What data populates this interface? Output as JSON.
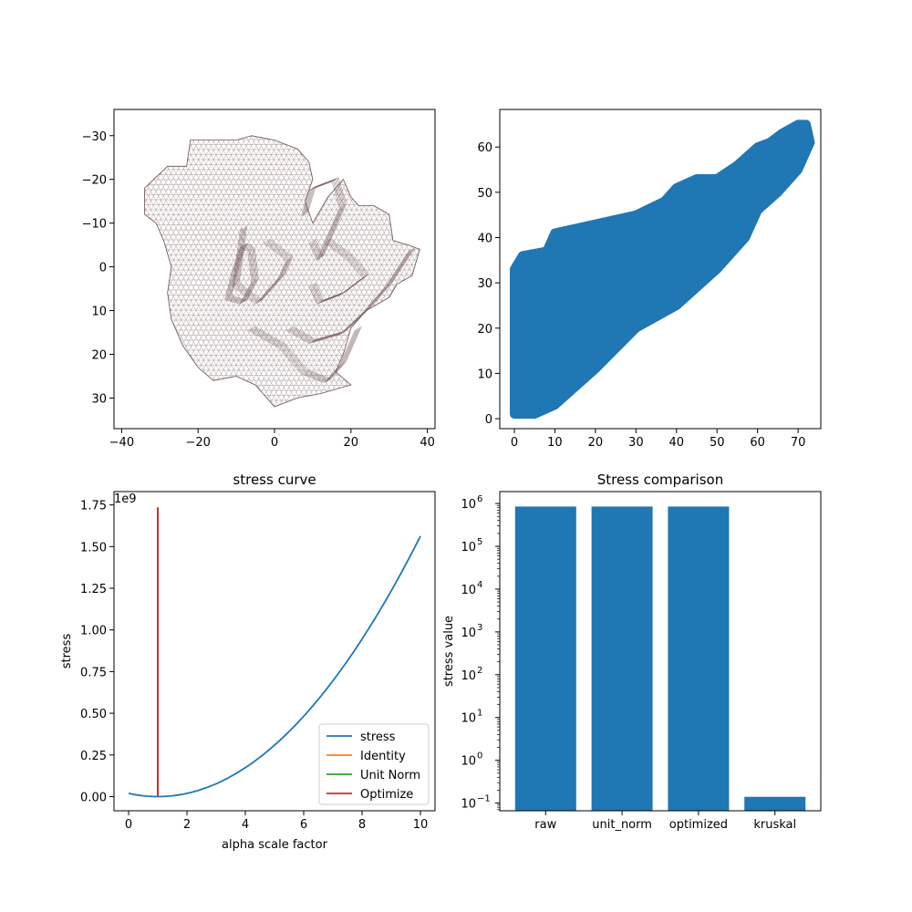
{
  "chart_data": [
    {
      "type": "mesh",
      "title": "",
      "xlabel": "",
      "ylabel": "",
      "xlim": [
        -42,
        42
      ],
      "ylim": [
        37,
        -36
      ],
      "y_inverted": true,
      "xticks": [
        -40,
        -20,
        0,
        20,
        40
      ],
      "yticks": [
        -30,
        -20,
        -10,
        0,
        10,
        20,
        30
      ],
      "xtick_labels": [
        "−40",
        "−20",
        "0",
        "20",
        "40"
      ],
      "ytick_labels": [
        "−30",
        "−20",
        "−10",
        "0",
        "10",
        "20",
        "30"
      ],
      "edge_color": "#6b4f4f",
      "outline": [
        [
          -34,
          -18
        ],
        [
          -28,
          -23
        ],
        [
          -23,
          -23
        ],
        [
          -22,
          -29
        ],
        [
          -16,
          -29
        ],
        [
          -10,
          -29
        ],
        [
          -6,
          -30
        ],
        [
          0,
          -29
        ],
        [
          6,
          -27
        ],
        [
          9,
          -24
        ],
        [
          10,
          -20
        ],
        [
          8,
          -15
        ],
        [
          10,
          -10
        ],
        [
          14,
          -16
        ],
        [
          18,
          -20
        ],
        [
          20,
          -16
        ],
        [
          22,
          -14
        ],
        [
          26,
          -14
        ],
        [
          30,
          -12
        ],
        [
          31,
          -6
        ],
        [
          35,
          -5
        ],
        [
          38,
          -4
        ],
        [
          36,
          2
        ],
        [
          32,
          4
        ],
        [
          30,
          7
        ],
        [
          24,
          10
        ],
        [
          20,
          14
        ],
        [
          18,
          20
        ],
        [
          16,
          24
        ],
        [
          20,
          27
        ],
        [
          12,
          29
        ],
        [
          6,
          30
        ],
        [
          0,
          32
        ],
        [
          -5,
          27
        ],
        [
          -10,
          25
        ],
        [
          -16,
          26
        ],
        [
          -20,
          23
        ],
        [
          -24,
          18
        ],
        [
          -27,
          12
        ],
        [
          -28,
          6
        ],
        [
          -27,
          0
        ],
        [
          -29,
          -6
        ],
        [
          -31,
          -10
        ],
        [
          -34,
          -12
        ]
      ],
      "folds": [
        [
          [
            -10,
            0
          ],
          [
            -8,
            -5
          ],
          [
            -6,
            -4
          ],
          [
            -5,
            3
          ],
          [
            -8,
            8
          ],
          [
            -12,
            7
          ],
          [
            -10,
            0
          ]
        ],
        [
          [
            -8,
            -9
          ],
          [
            -10,
            4
          ],
          [
            -4,
            8
          ],
          [
            2,
            2
          ],
          [
            4,
            -2
          ],
          [
            -2,
            -6
          ]
        ],
        [
          [
            8,
            -12
          ],
          [
            10,
            -18
          ],
          [
            16,
            -20
          ],
          [
            18,
            -14
          ],
          [
            14,
            -6
          ],
          [
            12,
            -2
          ],
          [
            10,
            -6
          ]
        ],
        [
          [
            4,
            14
          ],
          [
            10,
            17
          ],
          [
            18,
            15
          ],
          [
            24,
            10
          ],
          [
            30,
            4
          ],
          [
            36,
            -4
          ]
        ],
        [
          [
            -6,
            14
          ],
          [
            2,
            18
          ],
          [
            8,
            24
          ],
          [
            14,
            26
          ],
          [
            18,
            22
          ],
          [
            22,
            14
          ]
        ],
        [
          [
            14,
            -6
          ],
          [
            20,
            -2
          ],
          [
            24,
            2
          ],
          [
            18,
            6
          ],
          [
            12,
            8
          ],
          [
            10,
            4
          ]
        ]
      ]
    },
    {
      "type": "scatter",
      "title": "",
      "xlabel": "",
      "ylabel": "",
      "xlim": [
        -3.6,
        75.6
      ],
      "ylim": [
        -2.2,
        68.3
      ],
      "xticks": [
        0,
        10,
        20,
        30,
        40,
        50,
        60,
        70
      ],
      "yticks": [
        0,
        10,
        20,
        30,
        40,
        50,
        60
      ],
      "color": "#1f77b4",
      "upper_envelope": [
        [
          0,
          33
        ],
        [
          2,
          36
        ],
        [
          8,
          37
        ],
        [
          10,
          41
        ],
        [
          20,
          43
        ],
        [
          30,
          45
        ],
        [
          37,
          48
        ],
        [
          40,
          51
        ],
        [
          45,
          53
        ],
        [
          50,
          53
        ],
        [
          55,
          56
        ],
        [
          60,
          60
        ],
        [
          63,
          61
        ],
        [
          66,
          63
        ],
        [
          70,
          65
        ],
        [
          72,
          65
        ]
      ],
      "lower_envelope": [
        [
          0,
          1
        ],
        [
          5,
          1
        ],
        [
          10,
          3
        ],
        [
          20,
          11
        ],
        [
          30,
          20
        ],
        [
          40,
          25
        ],
        [
          50,
          33
        ],
        [
          57,
          40
        ],
        [
          60,
          46
        ],
        [
          65,
          50
        ],
        [
          70,
          55
        ],
        [
          73,
          61
        ]
      ]
    },
    {
      "type": "line",
      "title": "stress curve",
      "xlabel": "alpha scale factor",
      "ylabel": "stress",
      "scale_note": "1e9",
      "xlim": [
        -0.5,
        10.5
      ],
      "ylim": [
        -0.085,
        1.83
      ],
      "xticks": [
        0,
        2,
        4,
        6,
        8,
        10
      ],
      "yticks": [
        0.0,
        0.25,
        0.5,
        0.75,
        1.0,
        1.25,
        1.5,
        1.75
      ],
      "ytick_labels": [
        "0.00",
        "0.25",
        "0.50",
        "0.75",
        "1.00",
        "1.25",
        "1.50",
        "1.75"
      ],
      "series": [
        {
          "name": "stress",
          "color": "#1f77b4",
          "kind": "curve",
          "x": [
            0,
            0.5,
            1,
            1.5,
            2,
            2.5,
            3,
            3.5,
            4,
            4.5,
            5,
            5.5,
            6,
            6.5,
            7,
            7.5,
            8,
            8.5,
            9,
            9.5,
            10
          ],
          "y": [
            0.0193,
            0.0048,
            0.0,
            0.0048,
            0.0193,
            0.0434,
            0.0771,
            0.1205,
            0.1735,
            0.2362,
            0.3085,
            0.3905,
            0.4821,
            0.5833,
            0.6942,
            0.8147,
            0.9448,
            1.0847,
            1.2341,
            1.3932,
            1.735
          ]
        },
        {
          "name": "Identity",
          "color": "#ff7f0e",
          "kind": "vline",
          "x": 1,
          "y0": 0,
          "y1": 1.735
        },
        {
          "name": "Unit Norm",
          "color": "#2ca02c",
          "kind": "vline",
          "x": 1,
          "y0": 0,
          "y1": 1.735
        },
        {
          "name": "Optimize",
          "color": "#d62728",
          "kind": "vline",
          "x": 1,
          "y0": 0,
          "y1": 1.735
        }
      ],
      "legend_position": "lower-right"
    },
    {
      "type": "bar",
      "title": "Stress comparison",
      "xlabel": "",
      "ylabel": "stress value",
      "yscale": "log",
      "ylim_log10": [
        -1.18,
        6.28
      ],
      "yticks_exp": [
        -1,
        0,
        1,
        2,
        3,
        4,
        5,
        6
      ],
      "categories": [
        "raw",
        "unit_norm",
        "optimized",
        "kruskal"
      ],
      "values": [
        850000,
        850000,
        850000,
        0.14
      ],
      "color": "#1f77b4"
    }
  ]
}
